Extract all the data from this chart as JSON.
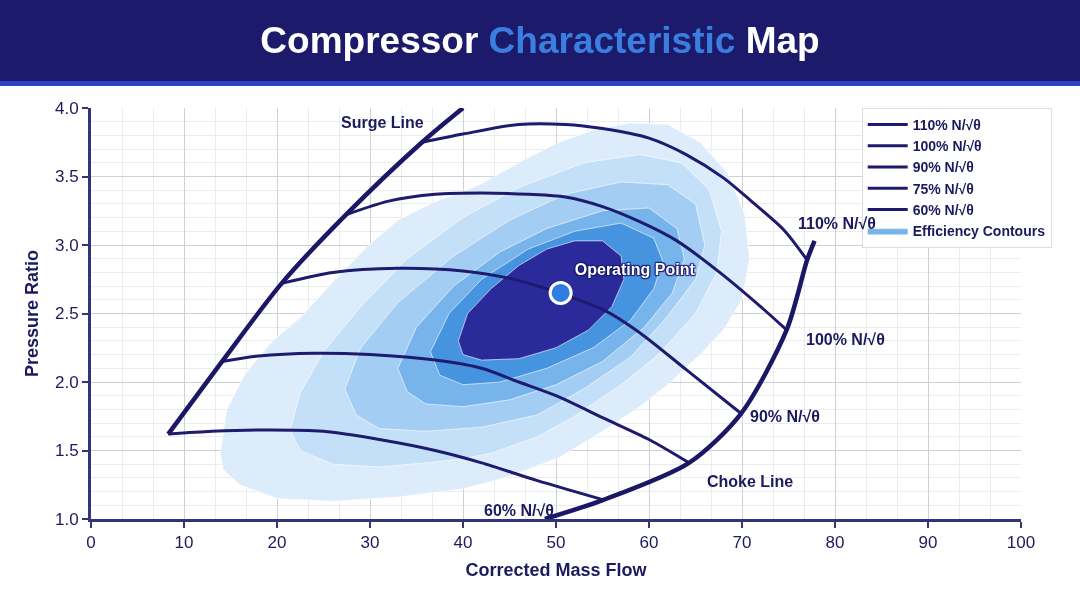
{
  "chart_data": {
    "type": "line",
    "title": "Compressor Characteristic Map",
    "xlabel": "Corrected Mass Flow",
    "ylabel": "Pressure Ratio",
    "xlim": [
      0,
      100
    ],
    "xticks": [
      0,
      10,
      20,
      30,
      40,
      50,
      60,
      70,
      80,
      90,
      100
    ],
    "ylim": [
      1,
      4
    ],
    "yticks": [
      {
        "value": 1,
        "label": "1.0"
      },
      {
        "value": 1.5,
        "label": "1.5"
      },
      {
        "value": 2,
        "label": "2.0"
      },
      {
        "value": 2.5,
        "label": "2.5"
      },
      {
        "value": 3,
        "label": "3.0"
      },
      {
        "value": 3.5,
        "label": "3.5"
      },
      {
        "value": 4,
        "label": "4.0"
      }
    ],
    "grid": true,
    "legend": "top right",
    "series": [
      {
        "type": "area",
        "color": "#dcecfb",
        "x": [
          13.9,
          14.6,
          16.5,
          19.5,
          22.5,
          26,
          29.7,
          33,
          36.8,
          41.8,
          46,
          50,
          54,
          58,
          62,
          65.5,
          68.5,
          70.3,
          70.8,
          70,
          68,
          65.5,
          62,
          59,
          55,
          50.4,
          45,
          40,
          33,
          26,
          20,
          16,
          14.2,
          13.9
        ],
        "values": [
          1.48,
          1.8,
          2.05,
          2.3,
          2.47,
          2.73,
          2.99,
          3.18,
          3.31,
          3.44,
          3.6,
          3.74,
          3.84,
          3.89,
          3.88,
          3.75,
          3.52,
          3.22,
          2.9,
          2.6,
          2.38,
          2.2,
          1.98,
          1.82,
          1.64,
          1.45,
          1.31,
          1.22,
          1.16,
          1.13,
          1.15,
          1.25,
          1.36,
          1.48
        ]
      },
      {
        "type": "area",
        "color": "#c4e0f8",
        "x": [
          21.4,
          22.5,
          25,
          29,
          34,
          40,
          46,
          53,
          59,
          63.5,
          66.5,
          67.8,
          67.3,
          65,
          61,
          57,
          52,
          48,
          43,
          40,
          36,
          31,
          26,
          22.5,
          21.4
        ],
        "values": [
          1.65,
          1.92,
          2.22,
          2.55,
          2.9,
          3.2,
          3.42,
          3.6,
          3.66,
          3.6,
          3.4,
          3.1,
          2.8,
          2.5,
          2.2,
          1.98,
          1.75,
          1.6,
          1.48,
          1.44,
          1.41,
          1.38,
          1.4,
          1.5,
          1.65
        ]
      },
      {
        "type": "area",
        "color": "#a4cdf3",
        "x": [
          27.3,
          29,
          33,
          39,
          45,
          51,
          57,
          62,
          65,
          66,
          65,
          62,
          58,
          53,
          48,
          42,
          36,
          31,
          28.5,
          27.3
        ],
        "values": [
          1.95,
          2.25,
          2.58,
          2.92,
          3.18,
          3.37,
          3.46,
          3.44,
          3.3,
          3.0,
          2.75,
          2.48,
          2.18,
          1.95,
          1.76,
          1.67,
          1.64,
          1.66,
          1.76,
          1.95
        ]
      },
      {
        "type": "area",
        "name": "Efficiency Contours",
        "color": "#78b4ec",
        "x": [
          33,
          35,
          39,
          44,
          49,
          55,
          60,
          63,
          63.8,
          62.5,
          59.5,
          55,
          50,
          45,
          40,
          36,
          34,
          33
        ],
        "values": [
          2.1,
          2.4,
          2.7,
          2.95,
          3.12,
          3.25,
          3.27,
          3.12,
          2.9,
          2.65,
          2.4,
          2.15,
          1.98,
          1.87,
          1.82,
          1.84,
          1.93,
          2.1
        ]
      },
      {
        "type": "area",
        "color": "#4694e0",
        "x": [
          36.5,
          38.5,
          42,
          47,
          52,
          57,
          60.5,
          61.5,
          60.5,
          58,
          54,
          49,
          44,
          40,
          37.5,
          36.5
        ],
        "values": [
          2.22,
          2.5,
          2.75,
          2.97,
          3.1,
          3.16,
          3.05,
          2.88,
          2.68,
          2.45,
          2.25,
          2.1,
          2.0,
          1.98,
          2.05,
          2.22
        ]
      },
      {
        "type": "area",
        "color": "#2b2a9a",
        "x": [
          39.5,
          40.5,
          43,
          46,
          49,
          52,
          55,
          57,
          57.3,
          56,
          53.5,
          50,
          46,
          42,
          40,
          39.5
        ],
        "values": [
          2.3,
          2.5,
          2.68,
          2.85,
          2.97,
          3.03,
          3.03,
          2.92,
          2.75,
          2.55,
          2.38,
          2.25,
          2.17,
          2.16,
          2.2,
          2.3
        ]
      },
      {
        "name": "110% N/√θ",
        "color": "#1e1b6e",
        "x": [
          35.6,
          40,
          46,
          51,
          55,
          60,
          64,
          68,
          71,
          74.5,
          77
        ],
        "values": [
          3.75,
          3.81,
          3.88,
          3.88,
          3.85,
          3.78,
          3.66,
          3.49,
          3.32,
          3.11,
          2.89
        ]
      },
      {
        "name": "100% N/√θ",
        "color": "#1e1b6e",
        "x": [
          27.4,
          32,
          37,
          42,
          47,
          51,
          55,
          59,
          63,
          67.6,
          72,
          74.8
        ],
        "values": [
          3.22,
          3.32,
          3.37,
          3.38,
          3.37,
          3.35,
          3.28,
          3.17,
          3.03,
          2.8,
          2.55,
          2.38
        ]
      },
      {
        "name": "90% N/√θ",
        "color": "#1e1b6e",
        "x": [
          20.5,
          26,
          33,
          40,
          46,
          55,
          59,
          64,
          69.9
        ],
        "values": [
          2.72,
          2.8,
          2.83,
          2.81,
          2.74,
          2.53,
          2.36,
          2.09,
          1.77
        ]
      },
      {
        "name": "75% N/√θ",
        "color": "#1e1b6e",
        "x": [
          14.1,
          18,
          24,
          30,
          37,
          42,
          46,
          50,
          55,
          60,
          64.3
        ],
        "values": [
          2.15,
          2.19,
          2.21,
          2.2,
          2.16,
          2.1,
          2.0,
          1.9,
          1.74,
          1.58,
          1.41
        ]
      },
      {
        "name": "60% N/√θ",
        "color": "#1e1b6e",
        "x": [
          8.3,
          13,
          18,
          25,
          31,
          37,
          42,
          48,
          55.1
        ],
        "values": [
          1.62,
          1.64,
          1.65,
          1.64,
          1.58,
          1.5,
          1.41,
          1.28,
          1.14
        ]
      },
      {
        "color": "#1b1766",
        "x": [
          8.3,
          14.1,
          20.5,
          27.4,
          35.6,
          40
        ],
        "values": [
          1.62,
          2.15,
          2.72,
          3.22,
          3.75,
          4.0
        ]
      },
      {
        "color": "#1b1766",
        "x": [
          48.8,
          55.1,
          64.3,
          69.9,
          74.8,
          77,
          77.8
        ],
        "values": [
          1.0,
          1.14,
          1.41,
          1.77,
          2.38,
          2.89,
          3.03
        ]
      },
      {
        "type": "scatter",
        "name": "Operating Point",
        "color": "#2f7de1",
        "marker": "circle",
        "x": [
          50.5
        ],
        "values": [
          2.65
        ]
      }
    ],
    "annotations": [
      {
        "text": "Surge Line",
        "x": 36.5,
        "y": 3.8
      },
      {
        "text": "110% N/√θ",
        "x": 75,
        "y": 3.07
      },
      {
        "text": "100% N/√θ",
        "x": 74.8,
        "y": 2.38
      },
      {
        "text": "90% N/√θ",
        "x": 69.9,
        "y": 1.77
      },
      {
        "text": "Choke Line",
        "x": 64.3,
        "y": 1.41
      },
      {
        "text": "60% N/√θ",
        "x": 50,
        "y": 1.24
      }
    ]
  }
}
